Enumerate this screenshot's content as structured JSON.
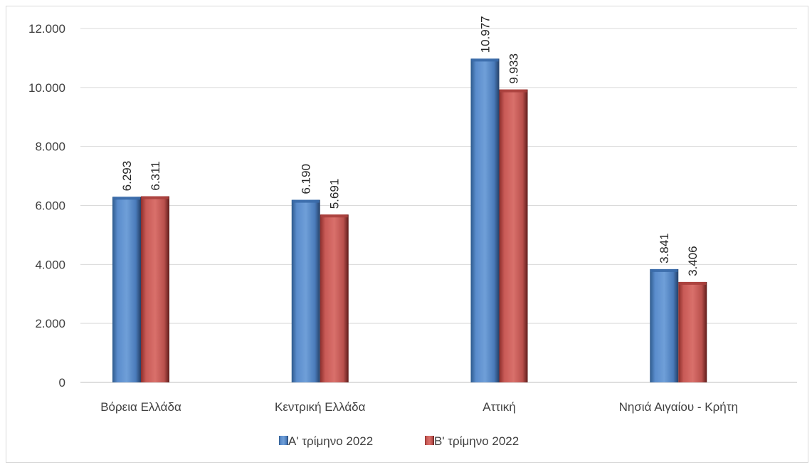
{
  "chart_data": {
    "type": "bar",
    "title": "",
    "xlabel": "",
    "ylabel": "",
    "categories": [
      "Βόρεια Ελλάδα",
      "Κεντρική Ελλάδα",
      "Αττική",
      "Νησιά Αιγαίου - Κρήτη"
    ],
    "series": [
      {
        "name": "Α' τρίμηνο 2022",
        "values": [
          6293,
          6190,
          10977,
          3841
        ],
        "labels": [
          "6.293",
          "6.190",
          "10.977",
          "3.841"
        ],
        "color": "#4f81bd"
      },
      {
        "name": "Β' τρίμηνο 2022",
        "values": [
          6311,
          5691,
          9933,
          3406
        ],
        "labels": [
          "6.311",
          "5.691",
          "9.933",
          "3.406"
        ],
        "color": "#c0504d"
      }
    ],
    "ylim": [
      0,
      12000
    ],
    "yticks": [
      0,
      2000,
      4000,
      6000,
      8000,
      10000,
      12000
    ],
    "ytick_labels": [
      "0",
      "2.000",
      "4.000",
      "6.000",
      "8.000",
      "10.000",
      "12.000"
    ],
    "grid": true,
    "legend_position": "bottom"
  }
}
